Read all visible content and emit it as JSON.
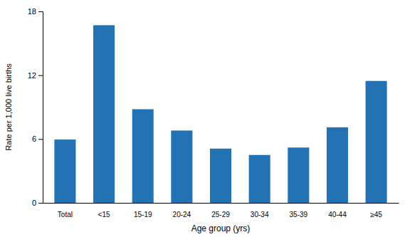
{
  "chart_data": {
    "type": "bar",
    "categories": [
      "Total",
      "<15",
      "15-19",
      "20-24",
      "25-29",
      "30-34",
      "35-39",
      "40-44",
      "≥45"
    ],
    "values": [
      5.95,
      16.7,
      8.8,
      6.8,
      5.1,
      4.5,
      5.2,
      7.1,
      11.46
    ],
    "color": "#2272b4",
    "xlabel": "Age group (yrs)",
    "ylabel": "Rate per 1,000 live births",
    "ylim": [
      0,
      18
    ],
    "yticks": [
      0,
      6,
      12,
      18
    ],
    "grid": false
  }
}
